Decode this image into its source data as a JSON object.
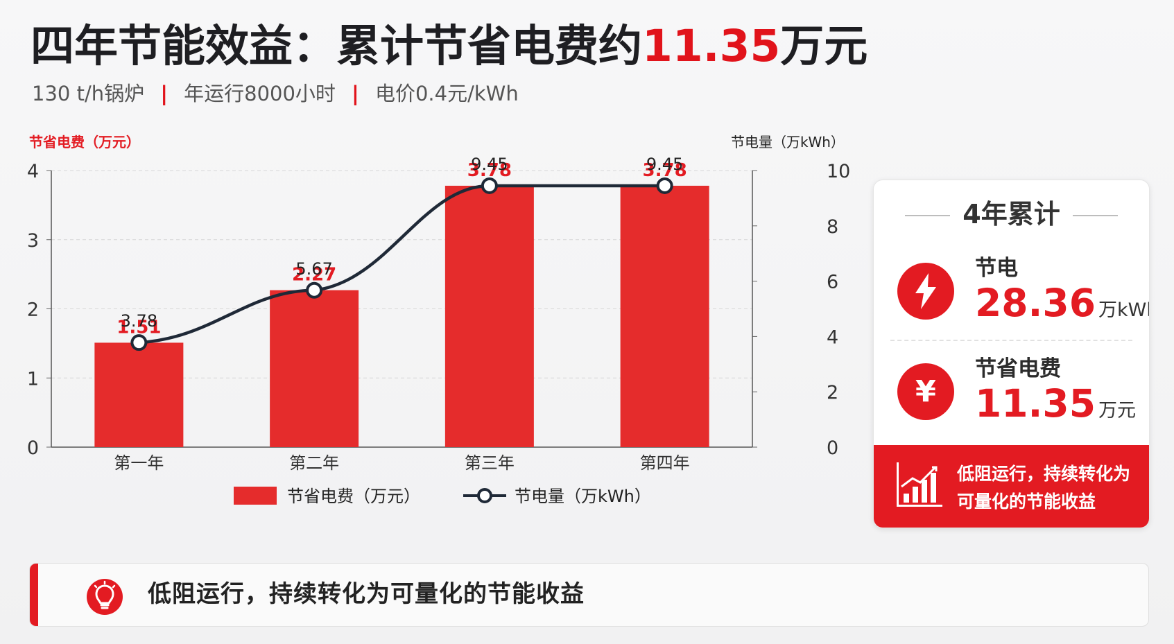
{
  "header": {
    "title_prefix": "四年节能效益：累计节省电费约",
    "title_value": "11.35",
    "title_suffix": "万元",
    "subtitle": {
      "items": [
        "130 t/h锅炉",
        "年运行8000小时",
        "电价0.4元/kWh"
      ],
      "separator": "|"
    }
  },
  "chart_data": {
    "type": "bar",
    "categories": [
      "第一年",
      "第二年",
      "第三年",
      "第四年"
    ],
    "series": [
      {
        "name": "节省电费（万元）",
        "type": "bar",
        "values": [
          1.51,
          2.27,
          3.78,
          3.78
        ],
        "axis": "left",
        "color": "#e52c2c"
      },
      {
        "name": "节电量（万kWh）",
        "type": "line",
        "values": [
          3.78,
          5.67,
          9.45,
          9.45
        ],
        "axis": "right",
        "color": "#1f2937"
      }
    ],
    "left_axis": {
      "label": "节省电费（万元）",
      "range": [
        0,
        4
      ],
      "ticks": [
        0,
        1,
        2,
        3,
        4
      ]
    },
    "right_axis": {
      "label": "节电量（万kWh）",
      "range": [
        0,
        10
      ],
      "ticks": [
        0,
        2,
        4,
        6,
        8,
        10
      ]
    },
    "grid": true,
    "legend": "bottom-center"
  },
  "summary": {
    "title": "4年累计",
    "items": [
      {
        "label": "节电",
        "value": "28.36",
        "unit": "万kWh",
        "icon": "lightning-icon"
      },
      {
        "label": "节省电费",
        "value": "11.35",
        "unit": "万元",
        "icon": "yen-icon"
      }
    ],
    "footer_text": "低阻运行，持续转化为可量化的节能收益",
    "footer_icon": "bar-chart-icon"
  },
  "banner": {
    "icon": "lightbulb-icon",
    "text": "低阻运行，持续转化为可量化的节能收益"
  },
  "colors": {
    "accent": "#e31b22",
    "line": "#1f2937",
    "background": "#f4f4f5",
    "grid": "#d7d7d7"
  }
}
